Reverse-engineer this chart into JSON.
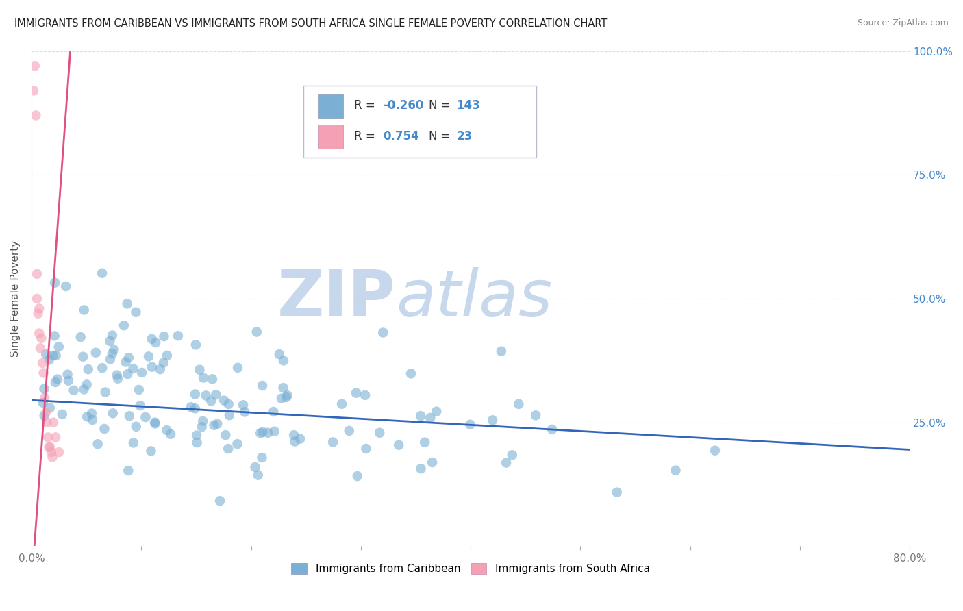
{
  "title": "IMMIGRANTS FROM CARIBBEAN VS IMMIGRANTS FROM SOUTH AFRICA SINGLE FEMALE POVERTY CORRELATION CHART",
  "source": "Source: ZipAtlas.com",
  "ylabel": "Single Female Poverty",
  "xlim": [
    0.0,
    0.8
  ],
  "ylim": [
    0.0,
    1.0
  ],
  "xticks": [
    0.0,
    0.1,
    0.2,
    0.3,
    0.4,
    0.5,
    0.6,
    0.7,
    0.8
  ],
  "xticklabels": [
    "0.0%",
    "",
    "",
    "",
    "",
    "",
    "",
    "",
    "80.0%"
  ],
  "yticks": [
    0.0,
    0.25,
    0.5,
    0.75,
    1.0
  ],
  "yticklabels_right": [
    "",
    "25.0%",
    "50.0%",
    "75.0%",
    "100.0%"
  ],
  "caribbean_color": "#7BAFD4",
  "caribbean_alpha": 0.6,
  "south_africa_color": "#F4A0B5",
  "south_africa_alpha": 0.6,
  "trend_caribbean_color": "#3366BB",
  "trend_south_africa_color": "#E05080",
  "R_caribbean": -0.26,
  "N_caribbean": 143,
  "R_south_africa": 0.754,
  "N_south_africa": 23,
  "legend_label_caribbean": "Immigrants from Caribbean",
  "legend_label_south_africa": "Immigrants from South Africa",
  "watermark_ZIP": "ZIP",
  "watermark_atlas": "atlas",
  "watermark_color": "#C8D8EC",
  "background_color": "#FFFFFF",
  "grid_color": "#DDDDDD",
  "title_color": "#222222",
  "axis_label_color": "#555555",
  "tick_color": "#777777",
  "right_tick_color": "#4488CC",
  "trend_caribbean_endpoints": [
    [
      0.0,
      0.295
    ],
    [
      0.8,
      0.195
    ]
  ],
  "trend_south_africa_endpoints": [
    [
      0.0,
      -0.08
    ],
    [
      0.036,
      1.02
    ]
  ]
}
